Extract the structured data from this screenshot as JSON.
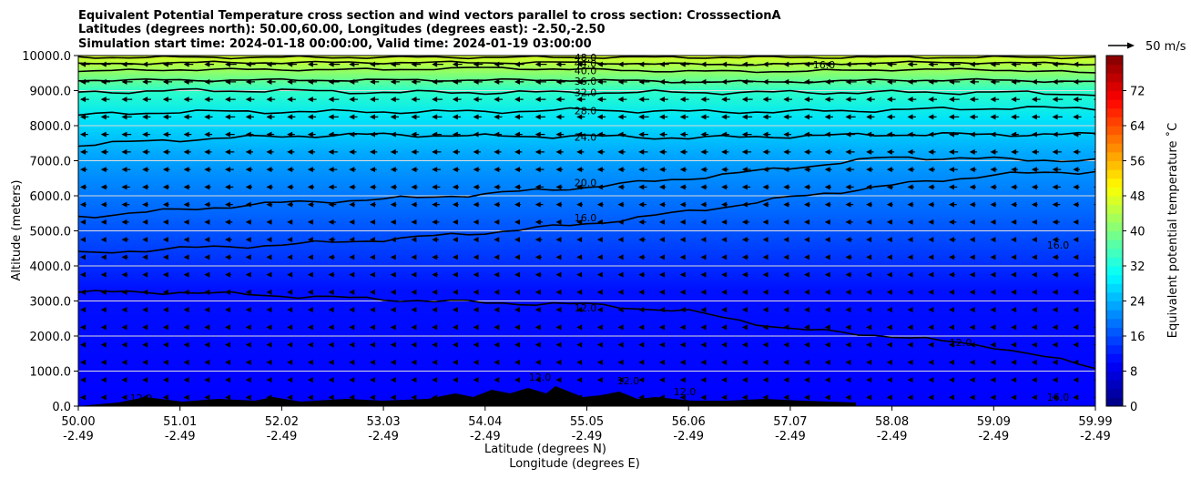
{
  "chart_data": {
    "type": "heatmap",
    "title_lines": [
      "Equivalent Potential Temperature cross section and wind vectors parallel to cross section: CrosssectionA",
      "Latitudes (degrees north): 50.00,60.00, Longitudes (degrees east): -2.50,-2.50",
      "Simulation start time: 2024-01-18 00:00:00, Valid time: 2024-01-19 03:00:00"
    ],
    "ylabel": "Altitude (meters)",
    "xlabel_lines": [
      "Latitude (degrees N)",
      "Longitude (degrees E)"
    ],
    "y_ticks": [
      "0.0",
      "1000.0",
      "2000.0",
      "3000.0",
      "4000.0",
      "5000.0",
      "6000.0",
      "7000.0",
      "8000.0",
      "9000.0",
      "10000.0"
    ],
    "y_range": [
      0,
      10000
    ],
    "x_range": [
      50.0,
      59.99
    ],
    "x_ticks": [
      {
        "lat": "50.00",
        "lon": "-2.49"
      },
      {
        "lat": "51.01",
        "lon": "-2.49"
      },
      {
        "lat": "52.02",
        "lon": "-2.49"
      },
      {
        "lat": "53.03",
        "lon": "-2.49"
      },
      {
        "lat": "54.04",
        "lon": "-2.49"
      },
      {
        "lat": "55.05",
        "lon": "-2.49"
      },
      {
        "lat": "56.06",
        "lon": "-2.49"
      },
      {
        "lat": "57.07",
        "lon": "-2.49"
      },
      {
        "lat": "58.08",
        "lon": "-2.49"
      },
      {
        "lat": "59.09",
        "lon": "-2.49"
      },
      {
        "lat": "59.99",
        "lon": "-2.49"
      }
    ],
    "colorbar": {
      "label": "Equivalent potential temperature ˚C",
      "range": [
        0,
        80
      ],
      "ticks": [
        "0",
        "8",
        "16",
        "24",
        "32",
        "40",
        "48",
        "56",
        "64",
        "72"
      ],
      "colormap": "jet"
    },
    "quiver_key": "50 m/s",
    "grid": "horizontal",
    "contours": [
      {
        "level": "12.0",
        "alt": [
          3250,
          3250,
          3150,
          3050,
          2950,
          2900,
          2700,
          2200,
          2000,
          1700,
          1100
        ]
      },
      {
        "level": "16.0",
        "alt": [
          4350,
          4500,
          4600,
          4750,
          4950,
          5200,
          5550,
          5950,
          6300,
          6600,
          6700
        ]
      },
      {
        "level": "20.0",
        "alt": [
          5400,
          5600,
          5800,
          5900,
          6050,
          6250,
          6500,
          6800,
          7100,
          7050,
          7000
        ]
      },
      {
        "level": "24.0",
        "alt": [
          7450,
          7600,
          7700,
          7750,
          7700,
          7700,
          7650,
          7700,
          7750,
          7750,
          7750
        ]
      },
      {
        "level": "28.0",
        "alt": [
          8300,
          8400,
          8400,
          8400,
          8400,
          8450,
          8400,
          8400,
          8450,
          8500,
          8500
        ]
      },
      {
        "level": "32.0",
        "alt": [
          8950,
          9000,
          9000,
          8950,
          8950,
          8950,
          8950,
          8950,
          8950,
          8950,
          8900
        ]
      },
      {
        "level": "36.0",
        "alt": [
          9300,
          9300,
          9300,
          9300,
          9300,
          9300,
          9250,
          9250,
          9300,
          9300,
          9250
        ]
      },
      {
        "level": "40.0",
        "alt": [
          9550,
          9600,
          9600,
          9600,
          9650,
          9600,
          9550,
          9550,
          9600,
          9600,
          9500
        ]
      },
      {
        "level": "44.0",
        "alt": [
          9750,
          9800,
          9800,
          9800,
          9800,
          9800,
          9750,
          9750,
          9800,
          9800,
          9750
        ]
      },
      {
        "level": "48.0",
        "alt": [
          9950,
          9950,
          9950,
          9950,
          9950,
          9950,
          9950,
          9950,
          9950,
          9950,
          9950
        ]
      }
    ],
    "extra_labels": [
      "16.0",
      "16.0",
      "16.0",
      "12.0",
      "12.0",
      "12.0",
      "12.0",
      "12.0"
    ]
  }
}
